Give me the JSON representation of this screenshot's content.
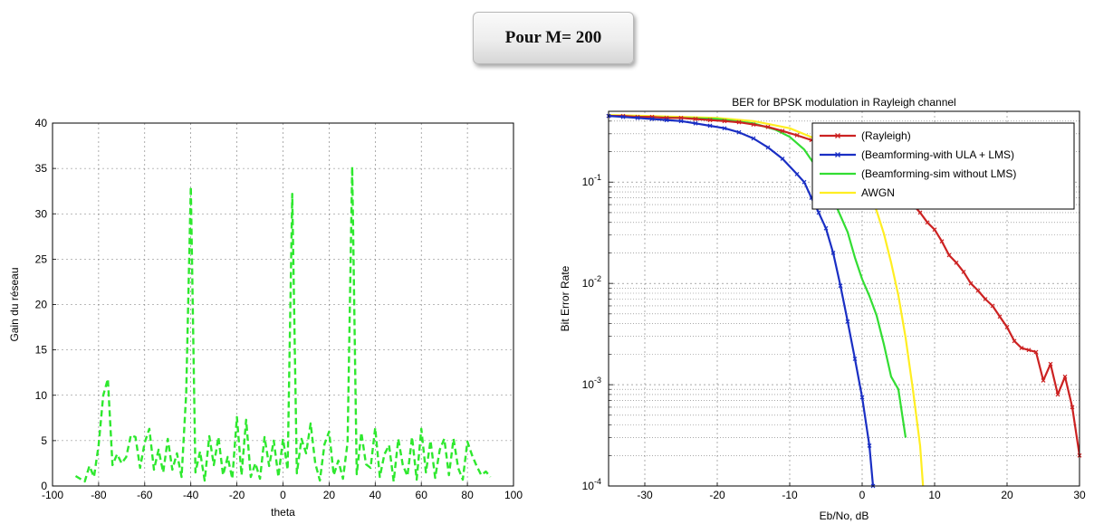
{
  "banner": {
    "text": "Pour M= 200"
  },
  "chart_data": [
    {
      "type": "line",
      "title": "",
      "xlabel": "theta",
      "ylabel": "Gain du réseau",
      "xlim": [
        -100,
        100
      ],
      "ylim": [
        0,
        40
      ],
      "xticks": [
        -100,
        -80,
        -60,
        -40,
        -20,
        0,
        20,
        40,
        60,
        80,
        100
      ],
      "yticks": [
        0,
        5,
        10,
        15,
        20,
        25,
        30,
        35,
        40
      ],
      "grid": true,
      "series": [
        {
          "color": "#2ee82e",
          "style": "dashed",
          "x": [
            -90,
            -88,
            -86,
            -84,
            -82,
            -80,
            -78,
            -76,
            -74,
            -72,
            -70,
            -68,
            -66,
            -64,
            -62,
            -60,
            -58,
            -56,
            -54,
            -52,
            -50,
            -48,
            -46,
            -44,
            -42,
            -40,
            -38,
            -36,
            -34,
            -32,
            -30,
            -28,
            -26,
            -24,
            -22,
            -20,
            -18,
            -16,
            -14,
            -12,
            -10,
            -8,
            -6,
            -4,
            -2,
            0,
            2,
            4,
            6,
            8,
            10,
            12,
            14,
            16,
            18,
            20,
            22,
            24,
            26,
            28,
            30,
            32,
            34,
            36,
            38,
            40,
            42,
            44,
            46,
            48,
            50,
            52,
            54,
            56,
            58,
            60,
            62,
            64,
            66,
            68,
            70,
            72,
            74,
            76,
            78,
            80,
            82,
            84,
            86,
            88,
            90
          ],
          "values": [
            1.1,
            0.8,
            0.5,
            2.2,
            1.0,
            4.5,
            10.0,
            11.8,
            2.3,
            3.5,
            2.5,
            3.2,
            5.6,
            5.4,
            2.0,
            4.8,
            6.3,
            1.8,
            4.0,
            1.5,
            5.2,
            1.8,
            3.6,
            1.0,
            10.2,
            33.0,
            1.5,
            3.8,
            0.6,
            5.5,
            2.3,
            5.4,
            1.2,
            3.2,
            0.8,
            7.6,
            1.2,
            7.3,
            1.0,
            2.5,
            0.8,
            5.4,
            2.2,
            5.0,
            1.0,
            5.2,
            1.8,
            32.2,
            1.4,
            5.2,
            3.6,
            6.9,
            2.5,
            0.6,
            4.6,
            6.0,
            1.2,
            2.8,
            0.8,
            4.8,
            35.2,
            1.3,
            5.9,
            2.4,
            2.0,
            6.4,
            1.0,
            3.5,
            4.5,
            0.5,
            5.2,
            2.3,
            1.1,
            5.4,
            0.7,
            6.3,
            1.5,
            5.0,
            0.9,
            4.0,
            5.2,
            1.2,
            5.2,
            2.0,
            0.7,
            4.9,
            3.4,
            2.2,
            1.2,
            1.6,
            1.0
          ]
        }
      ]
    },
    {
      "type": "line",
      "title": "BER for BPSK modulation in Rayleigh channel",
      "xlabel": "Eb/No, dB",
      "ylabel": "Bit Error Rate",
      "xlim": [
        -35,
        30
      ],
      "ylim": [
        0.0001,
        0.5
      ],
      "yscale": "log",
      "xticks": [
        -30,
        -20,
        -10,
        0,
        10,
        20,
        30
      ],
      "ytick_labels": [
        "10^-4",
        "10^-3",
        "10^-2",
        "10^-1"
      ],
      "grid": true,
      "legend": "top-right",
      "series": [
        {
          "name": "(Rayleigh)",
          "color": "#cc2222",
          "marker": "x",
          "x": [
            -35,
            -33,
            -31,
            -29,
            -27,
            -25,
            -23,
            -21,
            -19,
            -17,
            -15,
            -13,
            -11,
            -9,
            -7,
            -5,
            -3,
            -1,
            1,
            3,
            5,
            6,
            7,
            8,
            9,
            10,
            11,
            12,
            13,
            14,
            15,
            16,
            17,
            18,
            19,
            20,
            21,
            22,
            23,
            24,
            25,
            26,
            27,
            28,
            29,
            30
          ],
          "values": [
            0.45,
            0.45,
            0.44,
            0.44,
            0.43,
            0.43,
            0.42,
            0.41,
            0.4,
            0.39,
            0.37,
            0.35,
            0.32,
            0.29,
            0.26,
            0.22,
            0.19,
            0.16,
            0.13,
            0.11,
            0.085,
            0.07,
            0.06,
            0.05,
            0.04,
            0.034,
            0.026,
            0.019,
            0.016,
            0.013,
            0.01,
            0.0085,
            0.007,
            0.006,
            0.0047,
            0.0037,
            0.0027,
            0.0023,
            0.0022,
            0.0021,
            0.0011,
            0.0016,
            0.0008,
            0.0012,
            0.0006,
            0.0002
          ]
        },
        {
          "name": "(Beamforming-with ULA + LMS)",
          "color": "#1a2fc4",
          "marker": "x",
          "x": [
            -35,
            -33,
            -31,
            -29,
            -27,
            -25,
            -23,
            -21,
            -19,
            -17,
            -15,
            -13,
            -11,
            -9,
            -8,
            -7,
            -6,
            -5,
            -4,
            -3,
            -2,
            -1,
            0,
            1,
            1.5
          ],
          "values": [
            0.45,
            0.44,
            0.43,
            0.42,
            0.41,
            0.4,
            0.38,
            0.36,
            0.34,
            0.31,
            0.27,
            0.22,
            0.17,
            0.12,
            0.1,
            0.07,
            0.05,
            0.035,
            0.02,
            0.0095,
            0.0042,
            0.0018,
            0.00075,
            0.00025,
            0.0001
          ]
        },
        {
          "name": "(Beamforming-sim without LMS)",
          "color": "#33dd33",
          "x": [
            -35,
            -30,
            -25,
            -20,
            -15,
            -12,
            -10,
            -8,
            -6,
            -4,
            -2,
            -1,
            0,
            1,
            2,
            3,
            4,
            5,
            6
          ],
          "values": [
            0.45,
            0.44,
            0.43,
            0.42,
            0.38,
            0.33,
            0.28,
            0.21,
            0.13,
            0.068,
            0.032,
            0.018,
            0.011,
            0.0075,
            0.0048,
            0.0025,
            0.0012,
            0.0009,
            0.0003
          ]
        },
        {
          "name": "AWGN",
          "color": "#ffee22",
          "x": [
            -35,
            -30,
            -25,
            -20,
            -15,
            -10,
            -6,
            -4,
            -2,
            0,
            1,
            2,
            3,
            4,
            5,
            6,
            7,
            8,
            8.4
          ],
          "values": [
            0.46,
            0.45,
            0.44,
            0.43,
            0.4,
            0.34,
            0.26,
            0.21,
            0.16,
            0.1,
            0.076,
            0.052,
            0.031,
            0.016,
            0.0076,
            0.0029,
            0.0009,
            0.00025,
            0.0001
          ]
        }
      ]
    }
  ]
}
